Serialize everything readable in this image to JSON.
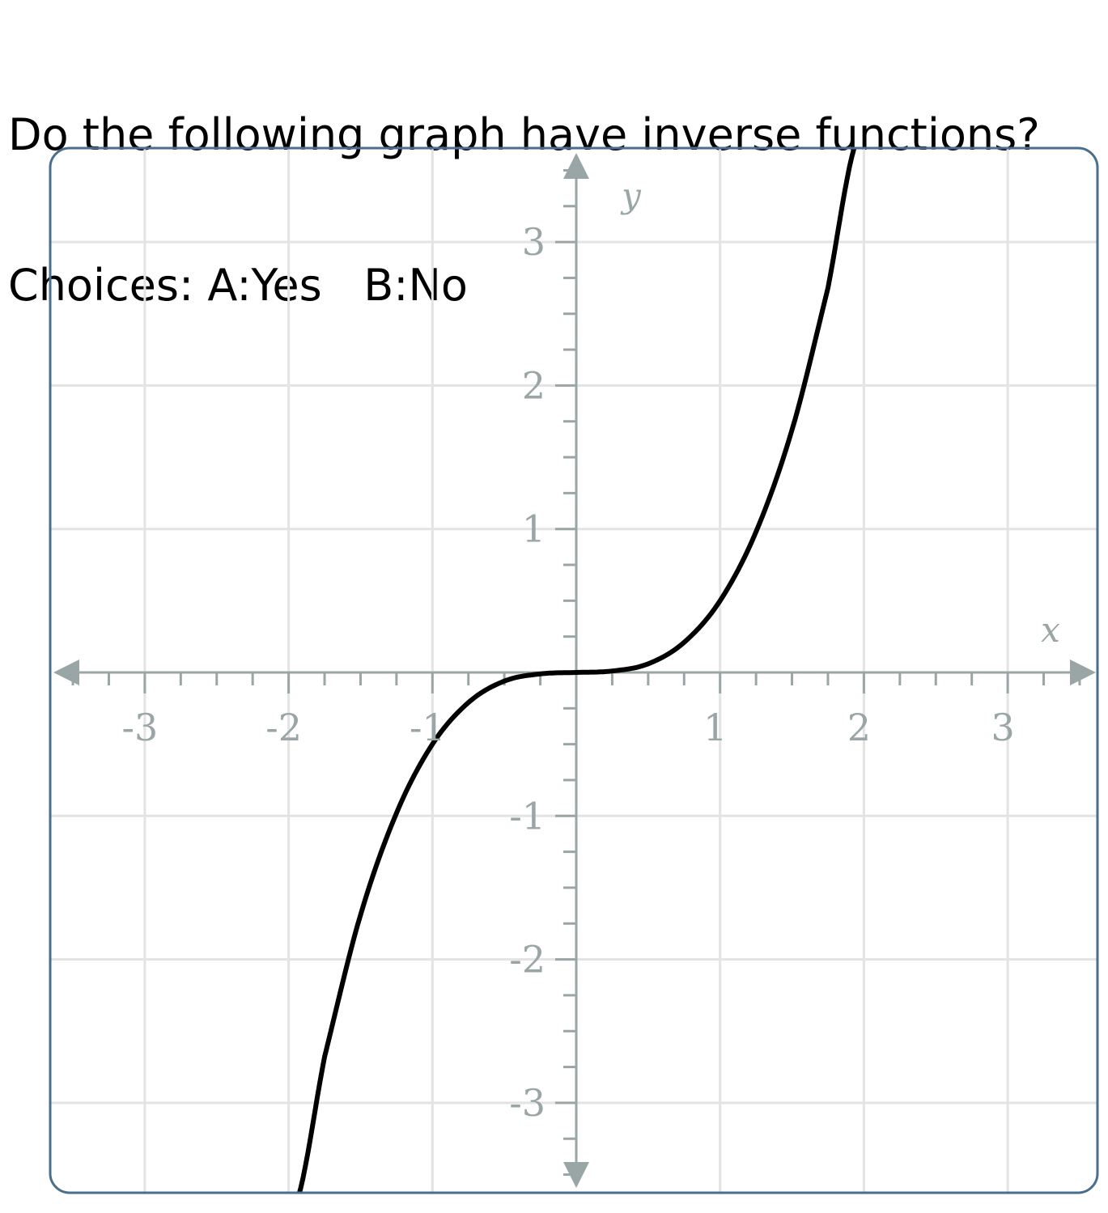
{
  "question": {
    "line1": "Do the following graph have inverse functions?",
    "line2": "Choices: A:Yes   B:No"
  },
  "colors": {
    "frame": "#4a6e8e",
    "grid": "#e3e3e3",
    "axis": "#9aa6a6",
    "curve": "#000000",
    "label": "#9aa6a6"
  },
  "chart_data": {
    "type": "line",
    "title": "",
    "xlabel": "x",
    "ylabel": "y",
    "xlim": [
      -3.65,
      3.65
    ],
    "ylim": [
      -3.65,
      3.65
    ],
    "grid": true,
    "x_ticks": [
      {
        "value": -3,
        "label": "-3"
      },
      {
        "value": -2,
        "label": "-2"
      },
      {
        "value": -1,
        "label": "-1"
      },
      {
        "value": 1,
        "label": "1"
      },
      {
        "value": 2,
        "label": "2"
      },
      {
        "value": 3,
        "label": "3"
      }
    ],
    "y_ticks": [
      {
        "value": 3,
        "label": "3"
      },
      {
        "value": 2,
        "label": "2"
      },
      {
        "value": 1,
        "label": "1"
      },
      {
        "value": -1,
        "label": "-1"
      },
      {
        "value": -2,
        "label": "-2"
      },
      {
        "value": -3,
        "label": "-3"
      }
    ],
    "minor_tick_step": 0.25,
    "series": [
      {
        "x": [
          -1.95,
          -1.75,
          -1.5,
          -1.25,
          -1.0,
          -0.75,
          -0.5,
          -0.25,
          0,
          0.25,
          0.5,
          0.75,
          1.0,
          1.25,
          1.5,
          1.75,
          1.95
        ],
        "y": [
          -3.71,
          -2.68,
          -1.69,
          -0.98,
          -0.5,
          -0.21,
          -0.06,
          -0.01,
          0,
          0.01,
          0.06,
          0.21,
          0.5,
          0.98,
          1.69,
          2.68,
          3.71
        ]
      }
    ]
  }
}
